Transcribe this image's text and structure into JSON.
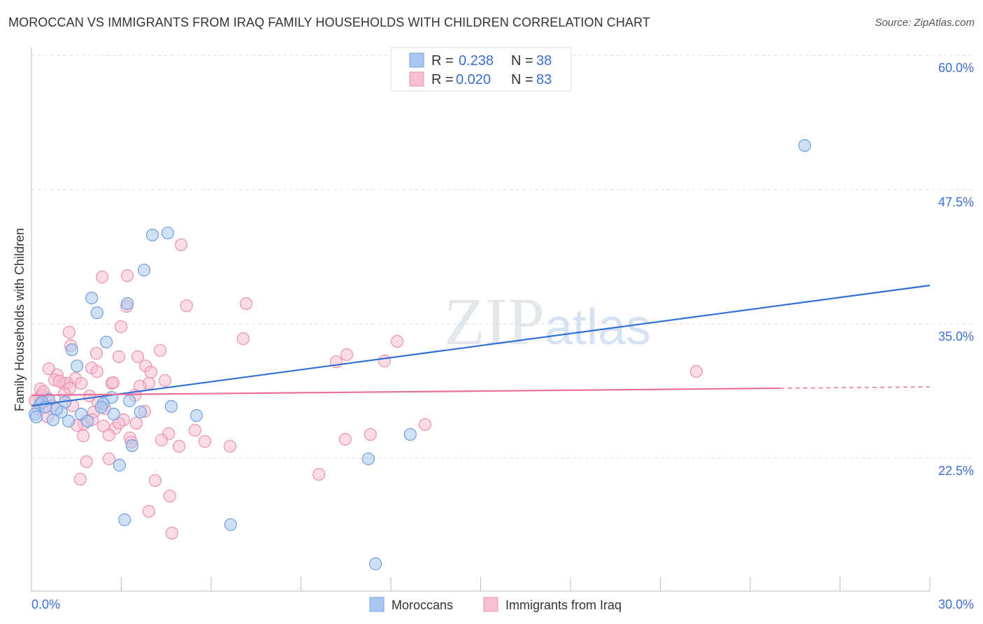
{
  "title": "MOROCCAN VS IMMIGRANTS FROM IRAQ FAMILY HOUSEHOLDS WITH CHILDREN CORRELATION CHART",
  "source": "Source: ZipAtlas.com",
  "watermark": "ZIPatlas",
  "colors": {
    "blue_fill": "#a9c8f0",
    "blue_stroke": "#6f9fe0",
    "blue_line": "#2e6fd6",
    "pink_fill": "#f7bfd0",
    "pink_stroke": "#e892ad",
    "pink_line": "#e8709a",
    "label": "#3b6fd4"
  },
  "legend": {
    "r_label": "R =",
    "n_label": "N =",
    "rows": [
      {
        "r": "0.238",
        "n": "38"
      },
      {
        "r": "0.020",
        "n": "83"
      }
    ]
  },
  "chart_data": {
    "type": "scatter",
    "title": "MOROCCAN VS IMMIGRANTS FROM IRAQ FAMILY HOUSEHOLDS WITH CHILDREN CORRELATION CHART",
    "xlabel": "",
    "ylabel": "Family Households with Children",
    "xlim": [
      0,
      30
    ],
    "ylim": [
      10.5,
      62
    ],
    "x_tick_labels": [
      "0.0%",
      "30.0%"
    ],
    "y_ticks": [
      60,
      47.5,
      35,
      22.5
    ],
    "y_tick_labels": [
      "60.0%",
      "47.5%",
      "35.0%",
      "22.5%"
    ],
    "grid": true,
    "legend_placement": "bottom",
    "series": [
      {
        "name": "Moroccans",
        "trend": {
          "x": [
            0,
            30
          ],
          "y": [
            27.38,
            38.58
          ]
        },
        "points": [
          [
            25.82,
            51.6
          ],
          [
            4.55,
            43.46
          ],
          [
            4.04,
            43.27
          ],
          [
            3.76,
            40.01
          ],
          [
            2.01,
            37.41
          ],
          [
            3.2,
            36.89
          ],
          [
            2.19,
            36.04
          ],
          [
            2.5,
            33.31
          ],
          [
            1.35,
            32.59
          ],
          [
            1.52,
            31.09
          ],
          [
            2.68,
            28.16
          ],
          [
            3.27,
            27.84
          ],
          [
            2.4,
            27.58
          ],
          [
            4.67,
            27.32
          ],
          [
            3.64,
            26.8
          ],
          [
            5.51,
            26.47
          ],
          [
            1.66,
            26.6
          ],
          [
            2.75,
            26.6
          ],
          [
            1.87,
            25.95
          ],
          [
            1.24,
            25.95
          ],
          [
            0.72,
            26.08
          ],
          [
            1.12,
            27.71
          ],
          [
            0.58,
            27.97
          ],
          [
            0.28,
            27.51
          ],
          [
            0.12,
            26.6
          ],
          [
            0.16,
            26.34
          ],
          [
            1.0,
            26.8
          ],
          [
            0.84,
            27.06
          ],
          [
            12.65,
            24.71
          ],
          [
            11.25,
            22.44
          ],
          [
            2.94,
            21.85
          ],
          [
            3.36,
            23.67
          ],
          [
            3.11,
            16.77
          ],
          [
            6.65,
            16.32
          ],
          [
            11.49,
            12.67
          ],
          [
            0.35,
            27.71
          ],
          [
            2.33,
            27.25
          ],
          [
            0.47,
            27.25
          ]
        ]
      },
      {
        "name": "Immigrants from Iraq",
        "trend": {
          "x": [
            0,
            25,
            30
          ],
          "y": [
            28.36,
            29.01,
            29.14
          ]
        },
        "points": [
          [
            5.0,
            42.36
          ],
          [
            2.36,
            39.36
          ],
          [
            3.2,
            39.49
          ],
          [
            3.18,
            36.63
          ],
          [
            5.18,
            36.69
          ],
          [
            7.17,
            36.89
          ],
          [
            2.99,
            34.74
          ],
          [
            1.26,
            34.22
          ],
          [
            7.07,
            33.63
          ],
          [
            12.21,
            33.37
          ],
          [
            1.31,
            32.98
          ],
          [
            4.3,
            32.53
          ],
          [
            2.17,
            32.27
          ],
          [
            2.92,
            31.94
          ],
          [
            3.55,
            31.94
          ],
          [
            10.53,
            32.14
          ],
          [
            10.18,
            31.48
          ],
          [
            11.79,
            31.55
          ],
          [
            22.2,
            30.57
          ],
          [
            3.81,
            31.09
          ],
          [
            0.58,
            30.83
          ],
          [
            2.01,
            30.9
          ],
          [
            0.86,
            30.25
          ],
          [
            3.99,
            30.51
          ],
          [
            2.19,
            30.57
          ],
          [
            1.47,
            29.92
          ],
          [
            4.46,
            29.73
          ],
          [
            0.77,
            29.79
          ],
          [
            1.07,
            29.47
          ],
          [
            1.19,
            29.47
          ],
          [
            1.66,
            29.47
          ],
          [
            2.68,
            29.47
          ],
          [
            3.92,
            29.47
          ],
          [
            3.62,
            29.21
          ],
          [
            2.73,
            29.53
          ],
          [
            0.3,
            28.95
          ],
          [
            3.46,
            28.36
          ],
          [
            1.94,
            28.29
          ],
          [
            0.26,
            28.16
          ],
          [
            0.51,
            28.16
          ],
          [
            0.12,
            27.84
          ],
          [
            1.38,
            27.38
          ],
          [
            2.45,
            27.12
          ],
          [
            3.08,
            26.08
          ],
          [
            3.78,
            26.86
          ],
          [
            2.08,
            26.8
          ],
          [
            0.54,
            26.34
          ],
          [
            1.75,
            25.69
          ],
          [
            1.52,
            25.56
          ],
          [
            2.4,
            25.5
          ],
          [
            2.8,
            25.3
          ],
          [
            5.46,
            25.1
          ],
          [
            4.58,
            24.78
          ],
          [
            1.73,
            24.58
          ],
          [
            2.59,
            24.65
          ],
          [
            3.29,
            24.39
          ],
          [
            3.34,
            24.0
          ],
          [
            4.34,
            24.19
          ],
          [
            5.79,
            24.06
          ],
          [
            4.93,
            23.61
          ],
          [
            6.63,
            23.61
          ],
          [
            10.48,
            24.26
          ],
          [
            11.32,
            24.71
          ],
          [
            13.14,
            25.63
          ],
          [
            1.84,
            22.18
          ],
          [
            2.59,
            22.44
          ],
          [
            1.63,
            20.55
          ],
          [
            4.13,
            20.42
          ],
          [
            9.6,
            21.0
          ],
          [
            3.92,
            17.55
          ],
          [
            4.62,
            18.98
          ],
          [
            4.69,
            15.53
          ],
          [
            0.35,
            28.36
          ],
          [
            0.7,
            27.38
          ],
          [
            0.93,
            29.66
          ],
          [
            2.22,
            27.71
          ],
          [
            0.23,
            27.06
          ],
          [
            0.4,
            28.69
          ],
          [
            1.28,
            29.01
          ],
          [
            2.92,
            25.76
          ],
          [
            3.5,
            25.76
          ],
          [
            2.03,
            26.08
          ],
          [
            1.1,
            28.5
          ]
        ]
      }
    ]
  }
}
